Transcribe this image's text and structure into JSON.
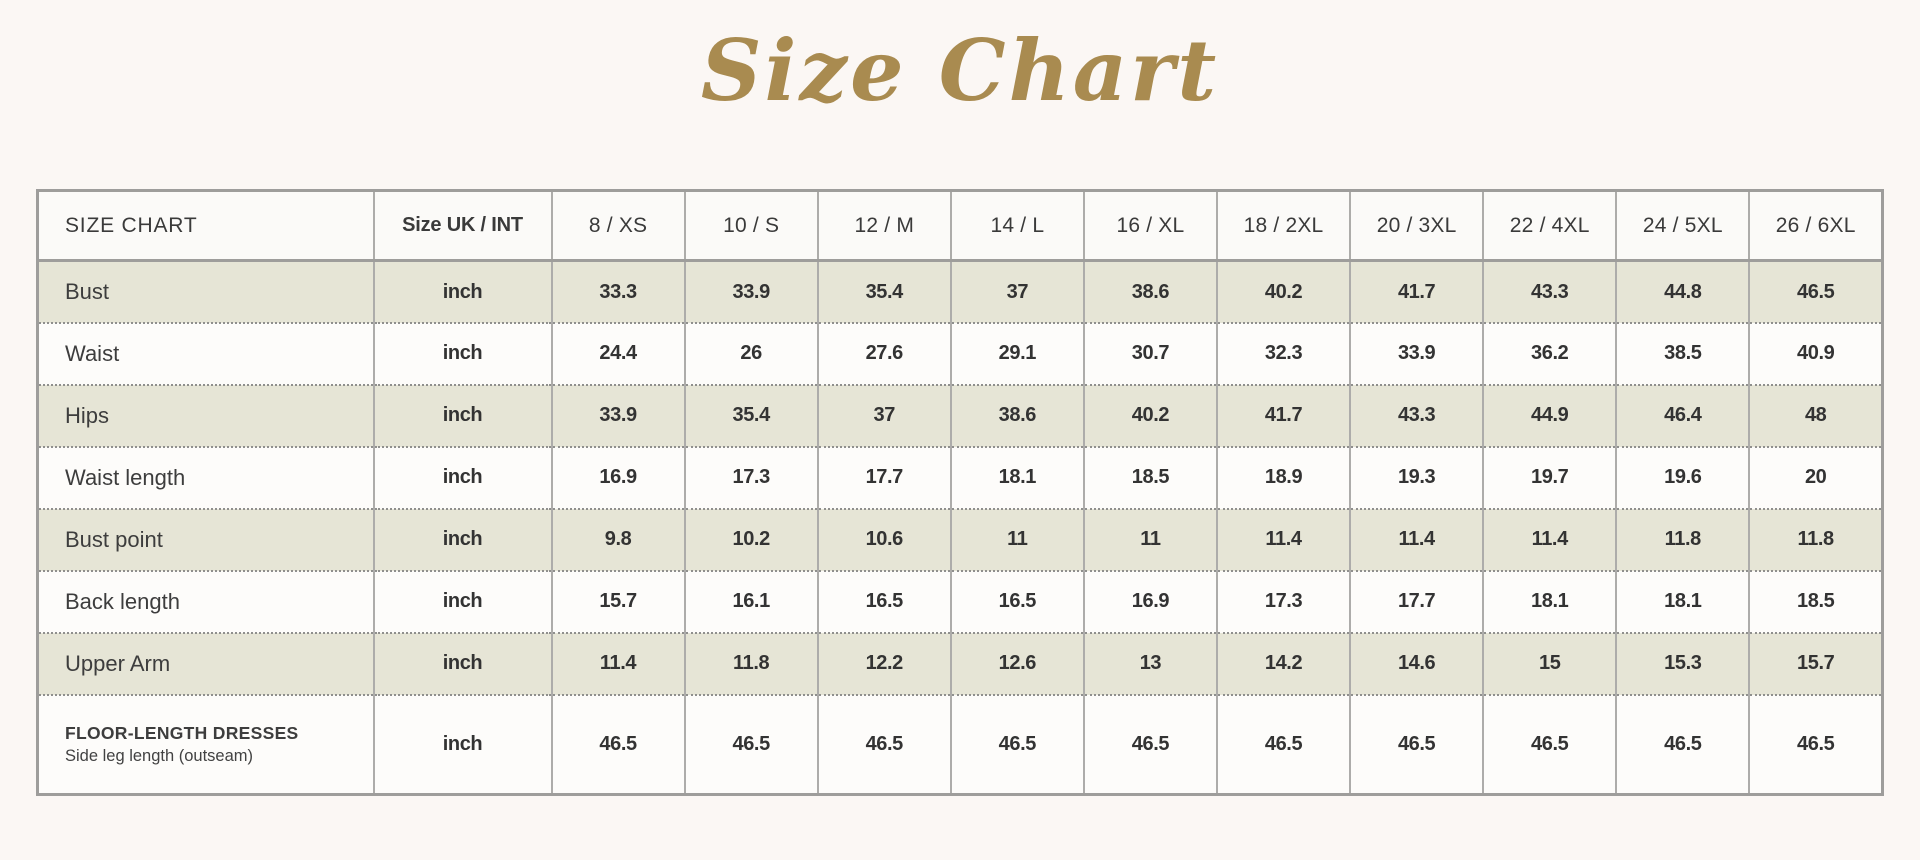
{
  "title": "Size Chart",
  "colors": {
    "title_gold": "#a98b50",
    "page_background": "#fbf7f4",
    "shaded_row": "#e6e5d6",
    "plain_row": "#fdfcfa",
    "border_gray": "#9e9d9b",
    "text": "#3a3a3a"
  },
  "table": {
    "corner_label": "SIZE CHART",
    "unit_header": "Size UK / INT",
    "size_headers": [
      "8 / XS",
      "10 / S",
      "12 / M",
      "14 / L",
      "16 / XL",
      "18 / 2XL",
      "20 / 3XL",
      "22 / 4XL",
      "24 / 5XL",
      "26 / 6XL"
    ],
    "rows": [
      {
        "label": "Bust",
        "unit": "inch",
        "values": [
          "33.3",
          "33.9",
          "35.4",
          "37",
          "38.6",
          "40.2",
          "41.7",
          "43.3",
          "44.8",
          "46.5"
        ]
      },
      {
        "label": "Waist",
        "unit": "inch",
        "values": [
          "24.4",
          "26",
          "27.6",
          "29.1",
          "30.7",
          "32.3",
          "33.9",
          "36.2",
          "38.5",
          "40.9"
        ]
      },
      {
        "label": "Hips",
        "unit": "inch",
        "values": [
          "33.9",
          "35.4",
          "37",
          "38.6",
          "40.2",
          "41.7",
          "43.3",
          "44.9",
          "46.4",
          "48"
        ]
      },
      {
        "label": "Waist length",
        "unit": "inch",
        "values": [
          "16.9",
          "17.3",
          "17.7",
          "18.1",
          "18.5",
          "18.9",
          "19.3",
          "19.7",
          "19.6",
          "20"
        ]
      },
      {
        "label": "Bust point",
        "unit": "inch",
        "values": [
          "9.8",
          "10.2",
          "10.6",
          "11",
          "11",
          "11.4",
          "11.4",
          "11.4",
          "11.8",
          "11.8"
        ]
      },
      {
        "label": "Back length",
        "unit": "inch",
        "values": [
          "15.7",
          "16.1",
          "16.5",
          "16.5",
          "16.9",
          "17.3",
          "17.7",
          "18.1",
          "18.1",
          "18.5"
        ]
      },
      {
        "label": "Upper Arm",
        "unit": "inch",
        "values": [
          "11.4",
          "11.8",
          "12.2",
          "12.6",
          "13",
          "14.2",
          "14.6",
          "15",
          "15.3",
          "15.7"
        ]
      },
      {
        "label": "FLOOR-LENGTH DRESSES",
        "sublabel": "Side leg length (outseam)",
        "unit": "inch",
        "values": [
          "46.5",
          "46.5",
          "46.5",
          "46.5",
          "46.5",
          "46.5",
          "46.5",
          "46.5",
          "46.5",
          "46.5"
        ]
      }
    ]
  }
}
